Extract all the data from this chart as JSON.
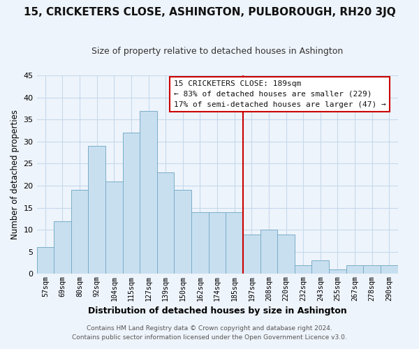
{
  "title": "15, CRICKETERS CLOSE, ASHINGTON, PULBOROUGH, RH20 3JQ",
  "subtitle": "Size of property relative to detached houses in Ashington",
  "xlabel": "Distribution of detached houses by size in Ashington",
  "ylabel": "Number of detached properties",
  "bar_labels": [
    "57sqm",
    "69sqm",
    "80sqm",
    "92sqm",
    "104sqm",
    "115sqm",
    "127sqm",
    "139sqm",
    "150sqm",
    "162sqm",
    "174sqm",
    "185sqm",
    "197sqm",
    "208sqm",
    "220sqm",
    "232sqm",
    "243sqm",
    "255sqm",
    "267sqm",
    "278sqm",
    "290sqm"
  ],
  "bar_values": [
    6,
    12,
    19,
    29,
    21,
    32,
    37,
    23,
    19,
    14,
    14,
    14,
    9,
    10,
    9,
    2,
    3,
    1,
    2,
    2,
    2
  ],
  "bar_color": "#c8dff0",
  "bar_edge_color": "#7aaec8",
  "vline_x": 11.5,
  "vline_color": "#cc0000",
  "annotation_title": "15 CRICKETERS CLOSE: 189sqm",
  "annotation_line1": "← 83% of detached houses are smaller (229)",
  "annotation_line2": "17% of semi-detached houses are larger (47) →",
  "ylim": [
    0,
    45
  ],
  "yticks": [
    0,
    5,
    10,
    15,
    20,
    25,
    30,
    35,
    40,
    45
  ],
  "footer1": "Contains HM Land Registry data © Crown copyright and database right 2024.",
  "footer2": "Contains public sector information licensed under the Open Government Licence v3.0.",
  "bg_color": "#eef4fb",
  "grid_color": "#c5d9ec",
  "title_fontsize": 11,
  "subtitle_fontsize": 9
}
